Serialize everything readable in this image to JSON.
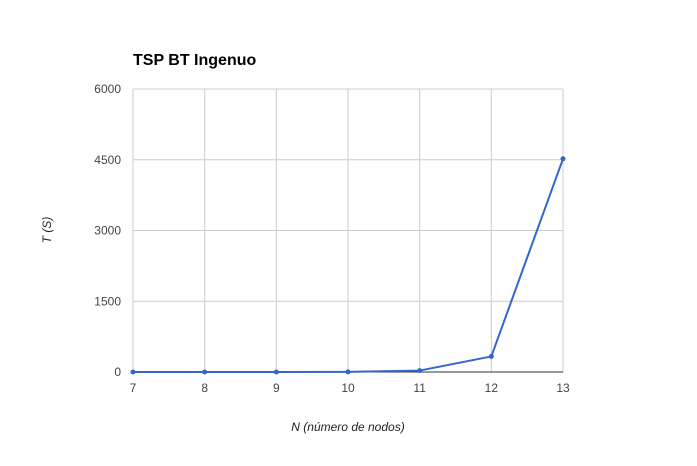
{
  "chart_data": {
    "type": "line",
    "title": "TSP BT Ingenuo",
    "xlabel": "N (número de nodos)",
    "ylabel": "T (S)",
    "x": [
      7,
      8,
      9,
      10,
      11,
      12,
      13
    ],
    "x_ticks": [
      "7",
      "8",
      "9",
      "10",
      "11",
      "12",
      "13"
    ],
    "y_ticks": [
      "0",
      "1500",
      "3000",
      "4500",
      "6000"
    ],
    "ylim": [
      0,
      6000
    ],
    "grid": true,
    "legend": "none",
    "series": [
      {
        "values": [
          0.1,
          0.2,
          0.5,
          3,
          30,
          330,
          4520
        ],
        "color": "#3366cc"
      }
    ]
  }
}
